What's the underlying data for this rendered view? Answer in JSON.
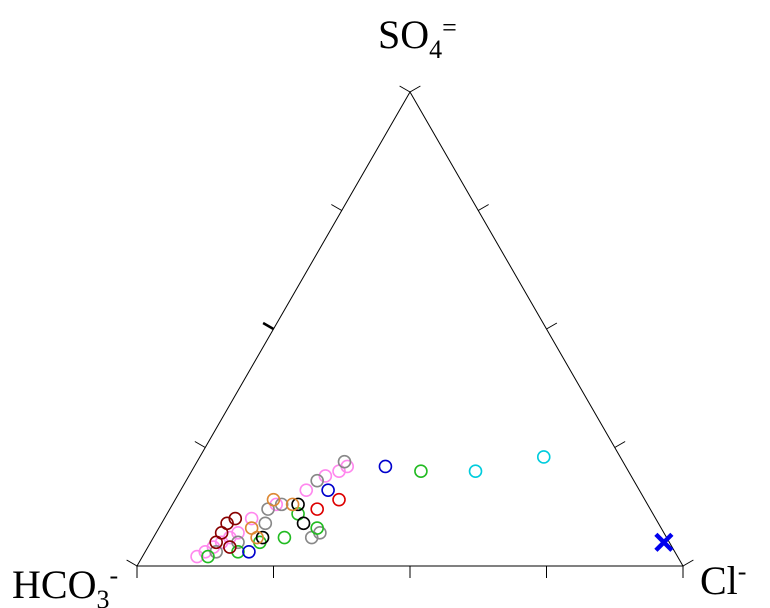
{
  "chart_data": {
    "type": "scatter",
    "subtype": "ternary",
    "title": "",
    "apices": {
      "top": {
        "base": "SO",
        "sub": "4",
        "sup": "="
      },
      "left": {
        "base": "HCO",
        "sub": "3",
        "sup": "-"
      },
      "right": {
        "base": "Cl",
        "sub": "",
        "sup": "-"
      }
    },
    "grid": false,
    "tick_fractions": [
      0.25,
      0.5,
      0.75
    ],
    "points": [
      {
        "so4": 0.02,
        "cl": 0.1,
        "color": "#ff88ee"
      },
      {
        "so4": 0.03,
        "cl": 0.11,
        "color": "#ff88ee"
      },
      {
        "so4": 0.04,
        "cl": 0.12,
        "color": "#ff88ee"
      },
      {
        "so4": 0.05,
        "cl": 0.13,
        "color": "#ff88ee"
      },
      {
        "so4": 0.06,
        "cl": 0.14,
        "color": "#ff88ee"
      },
      {
        "so4": 0.07,
        "cl": 0.15,
        "color": "#ff88ee"
      },
      {
        "so4": 0.1,
        "cl": 0.16,
        "color": "#ff88ee"
      },
      {
        "so4": 0.13,
        "cl": 0.19,
        "color": "#ff88ee"
      },
      {
        "so4": 0.16,
        "cl": 0.23,
        "color": "#ff88ee"
      },
      {
        "so4": 0.19,
        "cl": 0.25,
        "color": "#ff88ee"
      },
      {
        "so4": 0.2,
        "cl": 0.27,
        "color": "#ff88ee"
      },
      {
        "so4": 0.21,
        "cl": 0.28,
        "color": "#ff88ee"
      },
      {
        "so4": 0.03,
        "cl": 0.13,
        "color": "#888888"
      },
      {
        "so4": 0.05,
        "cl": 0.16,
        "color": "#888888"
      },
      {
        "so4": 0.09,
        "cl": 0.19,
        "color": "#888888"
      },
      {
        "so4": 0.12,
        "cl": 0.18,
        "color": "#888888"
      },
      {
        "so4": 0.13,
        "cl": 0.2,
        "color": "#888888"
      },
      {
        "so4": 0.18,
        "cl": 0.24,
        "color": "#888888"
      },
      {
        "so4": 0.22,
        "cl": 0.27,
        "color": "#888888"
      },
      {
        "so4": 0.06,
        "cl": 0.29,
        "color": "#888888"
      },
      {
        "so4": 0.07,
        "cl": 0.3,
        "color": "#888888"
      },
      {
        "so4": 0.02,
        "cl": 0.12,
        "color": "#22bb22"
      },
      {
        "so4": 0.03,
        "cl": 0.17,
        "color": "#22bb22"
      },
      {
        "so4": 0.05,
        "cl": 0.2,
        "color": "#22bb22"
      },
      {
        "so4": 0.06,
        "cl": 0.24,
        "color": "#22bb22"
      },
      {
        "so4": 0.08,
        "cl": 0.29,
        "color": "#22bb22"
      },
      {
        "so4": 0.11,
        "cl": 0.24,
        "color": "#22bb22"
      },
      {
        "so4": 0.2,
        "cl": 0.42,
        "color": "#22bb22"
      },
      {
        "so4": 0.04,
        "cl": 0.15,
        "color": "#880000"
      },
      {
        "so4": 0.05,
        "cl": 0.12,
        "color": "#880000"
      },
      {
        "so4": 0.07,
        "cl": 0.12,
        "color": "#880000"
      },
      {
        "so4": 0.09,
        "cl": 0.12,
        "color": "#880000"
      },
      {
        "so4": 0.1,
        "cl": 0.13,
        "color": "#880000"
      },
      {
        "so4": 0.06,
        "cl": 0.2,
        "color": "#000000"
      },
      {
        "so4": 0.09,
        "cl": 0.26,
        "color": "#000000"
      },
      {
        "so4": 0.13,
        "cl": 0.23,
        "color": "#000000"
      },
      {
        "so4": 0.06,
        "cl": 0.19,
        "color": "#dd8833"
      },
      {
        "so4": 0.13,
        "cl": 0.22,
        "color": "#dd8833"
      },
      {
        "so4": 0.14,
        "cl": 0.18,
        "color": "#dd8833"
      },
      {
        "so4": 0.08,
        "cl": 0.17,
        "color": "#dd8833"
      },
      {
        "so4": 0.03,
        "cl": 0.19,
        "color": "#0000cc"
      },
      {
        "so4": 0.16,
        "cl": 0.27,
        "color": "#0000cc"
      },
      {
        "so4": 0.21,
        "cl": 0.35,
        "color": "#0000cc"
      },
      {
        "so4": 0.12,
        "cl": 0.27,
        "color": "#dd0000"
      },
      {
        "so4": 0.14,
        "cl": 0.3,
        "color": "#dd0000"
      },
      {
        "so4": 0.2,
        "cl": 0.52,
        "color": "#00ccdd"
      },
      {
        "so4": 0.23,
        "cl": 0.63,
        "color": "#00ccdd"
      }
    ],
    "highlight": {
      "so4": 0.05,
      "cl": 0.94,
      "color": "#0000ee",
      "marker": "x"
    }
  }
}
